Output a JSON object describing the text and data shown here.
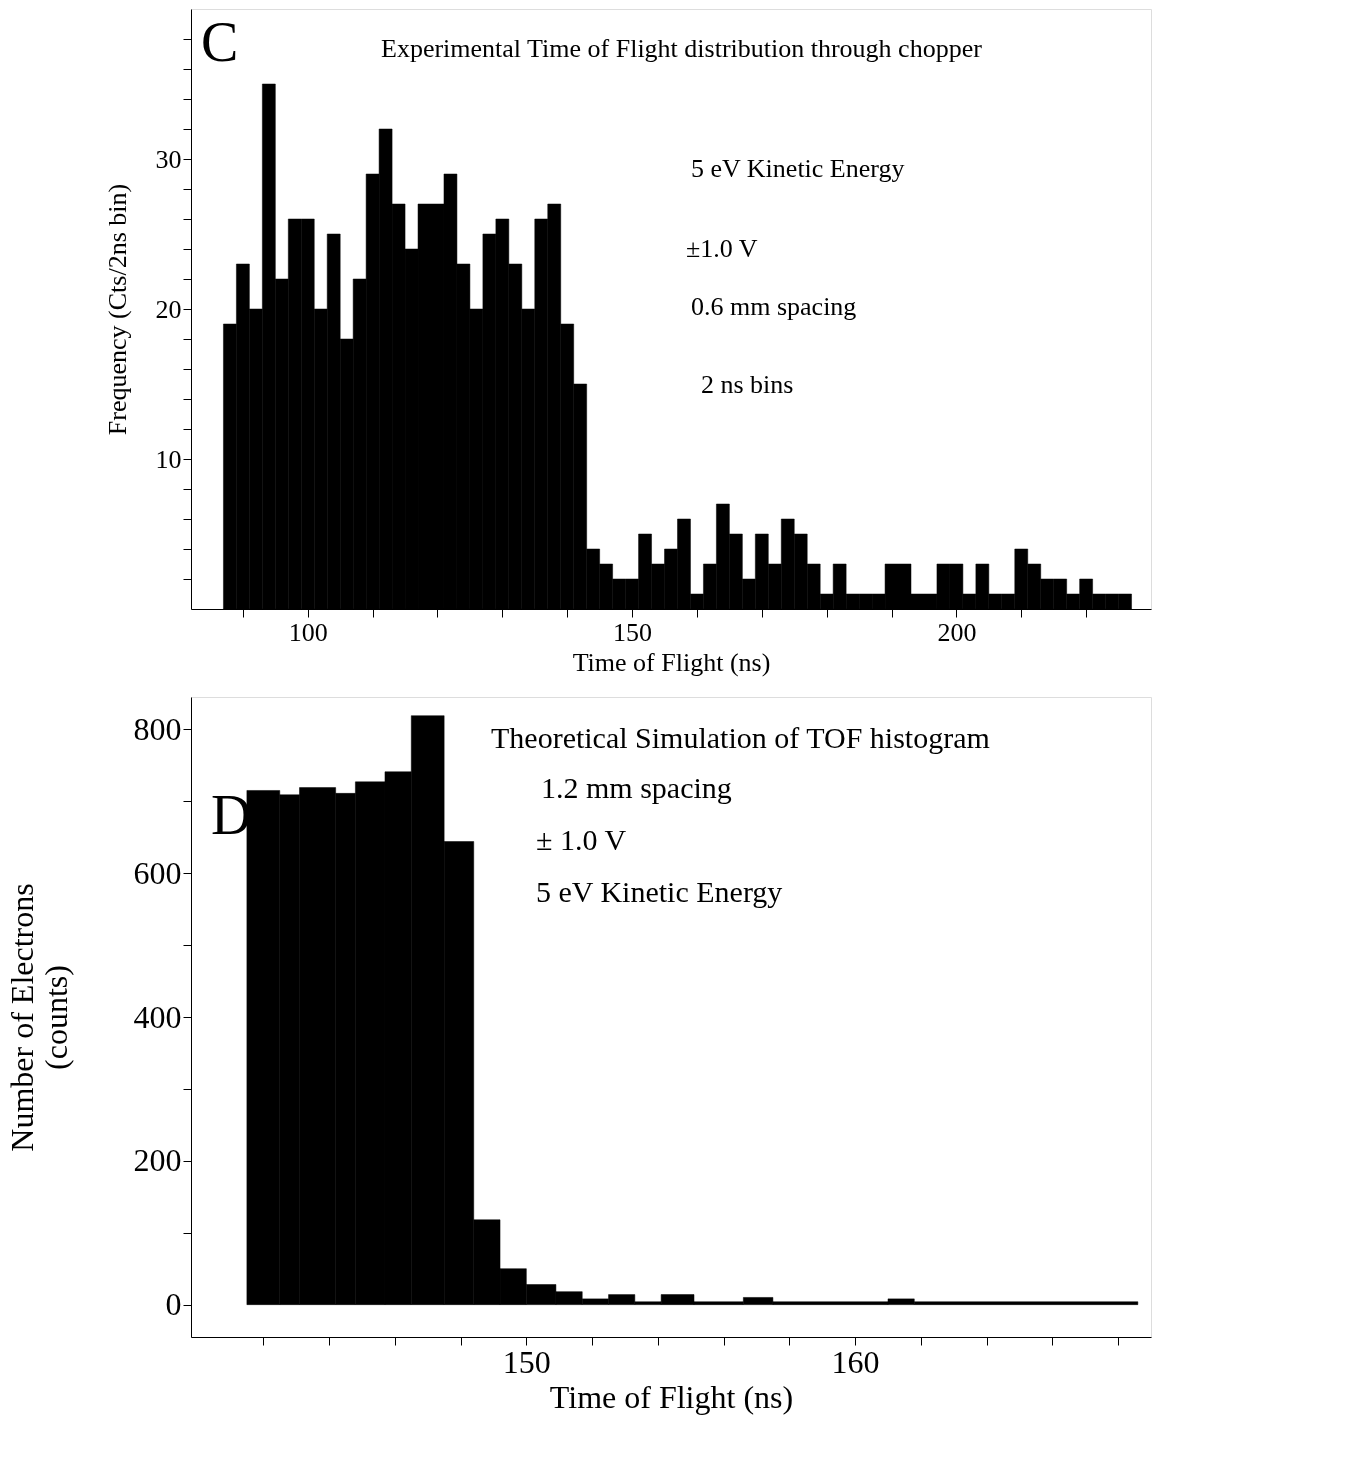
{
  "chart_data": [
    {
      "type": "histogram",
      "xlabel": "Time of Flight (ns)",
      "ylabel": "Frequency (Cts/2ns bin)",
      "annotations": [
        "C",
        "Experimental Time of Flight distribution through chopper",
        "5 eV Kinetic Energy",
        "±1.0 V",
        "0.6 mm spacing",
        "2 ns bins"
      ],
      "bins": [
        87,
        89,
        91,
        93,
        95,
        97,
        99,
        101,
        103,
        105,
        107,
        109,
        111,
        113,
        115,
        117,
        119,
        121,
        123,
        125,
        127,
        129,
        131,
        133,
        135,
        137,
        139,
        141,
        143,
        145,
        147,
        149,
        151,
        153,
        155,
        157,
        159,
        161,
        163,
        165,
        167,
        169,
        171,
        173,
        175,
        177,
        179,
        181,
        183,
        185,
        187,
        189,
        191,
        193,
        195,
        197,
        199,
        201,
        203,
        205,
        207,
        209,
        211,
        213,
        215,
        217,
        219,
        221,
        223,
        225,
        227
      ],
      "values": [
        19,
        23,
        20,
        35,
        22,
        26,
        26,
        20,
        25,
        18,
        22,
        29,
        32,
        27,
        24,
        27,
        27,
        29,
        23,
        20,
        25,
        26,
        23,
        20,
        26,
        27,
        19,
        15,
        4,
        3,
        2,
        2,
        5,
        3,
        4,
        6,
        1,
        3,
        7,
        5,
        2,
        5,
        3,
        6,
        5,
        3,
        1,
        3,
        1,
        1,
        1,
        3,
        3,
        1,
        1,
        3,
        3,
        1,
        3,
        1,
        1,
        4,
        3,
        2,
        2,
        1,
        2,
        1,
        1,
        1
      ],
      "color": "#000000",
      "xlim": [
        82,
        230
      ],
      "ylim": [
        0,
        40
      ],
      "xticks": [
        {
          "value": 90,
          "label": null
        },
        100,
        {
          "value": 110,
          "label": null
        },
        {
          "value": 120,
          "label": null
        },
        {
          "value": 130,
          "label": null
        },
        {
          "value": 140,
          "label": null
        },
        150,
        {
          "value": 160,
          "label": null
        },
        {
          "value": 170,
          "label": null
        },
        {
          "value": 180,
          "label": null
        },
        {
          "value": 190,
          "label": null
        },
        200,
        {
          "value": 210,
          "label": null
        },
        {
          "value": 220,
          "label": null
        }
      ],
      "yticks": [
        {
          "value": 2,
          "label": null
        },
        {
          "value": 4,
          "label": null
        },
        {
          "value": 6,
          "label": null
        },
        {
          "value": 8,
          "label": null
        },
        10,
        {
          "value": 12,
          "label": null
        },
        {
          "value": 14,
          "label": null
        },
        {
          "value": 16,
          "label": null
        },
        {
          "value": 18,
          "label": null
        },
        20,
        {
          "value": 22,
          "label": null
        },
        {
          "value": 24,
          "label": null
        },
        {
          "value": 26,
          "label": null
        },
        {
          "value": 28,
          "label": null
        },
        30,
        {
          "value": 32,
          "label": null
        },
        {
          "value": 34,
          "label": null
        },
        {
          "value": 36,
          "label": null
        },
        {
          "value": 38,
          "label": null
        }
      ],
      "grid": false
    },
    {
      "type": "histogram",
      "xlabel": "Time of Flight (ns)",
      "ylabel": "Number of Electrons\n(counts)",
      "annotations": [
        "D",
        "Theoretical Simulation of TOF histogram",
        "1.2 mm spacing",
        "± 1.0 V",
        "5 eV Kinetic Energy"
      ],
      "bins": [
        141.5,
        142.5,
        143.1,
        144.2,
        144.8,
        145.7,
        146.5,
        147.5,
        148.4,
        149.2,
        150.0,
        150.9,
        151.7,
        152.5,
        153.3,
        154.1,
        155.1,
        156.6,
        157.5,
        161.0,
        161.8,
        168.6
      ],
      "values": [
        715,
        709,
        719,
        711,
        727,
        741,
        819,
        644,
        118,
        50,
        28,
        18,
        8,
        14,
        4,
        14,
        4,
        10,
        4,
        8,
        4
      ],
      "color": "#000000",
      "xlim": [
        139.8,
        169
      ],
      "ylim": [
        -45,
        845
      ],
      "xticks": [
        {
          "value": 142,
          "label": null
        },
        {
          "value": 144,
          "label": null
        },
        {
          "value": 146,
          "label": null
        },
        {
          "value": 148,
          "label": null
        },
        150,
        {
          "value": 152,
          "label": null
        },
        {
          "value": 154,
          "label": null
        },
        {
          "value": 156,
          "label": null
        },
        {
          "value": 158,
          "label": null
        },
        160,
        {
          "value": 162,
          "label": null
        },
        {
          "value": 164,
          "label": null
        },
        {
          "value": 166,
          "label": null
        },
        {
          "value": 168,
          "label": null
        }
      ],
      "yticks": [
        0,
        {
          "value": 100,
          "label": null
        },
        200,
        {
          "value": 300,
          "label": null
        },
        400,
        {
          "value": 500,
          "label": null
        },
        600,
        {
          "value": 700,
          "label": null
        },
        800
      ],
      "grid": false
    }
  ]
}
